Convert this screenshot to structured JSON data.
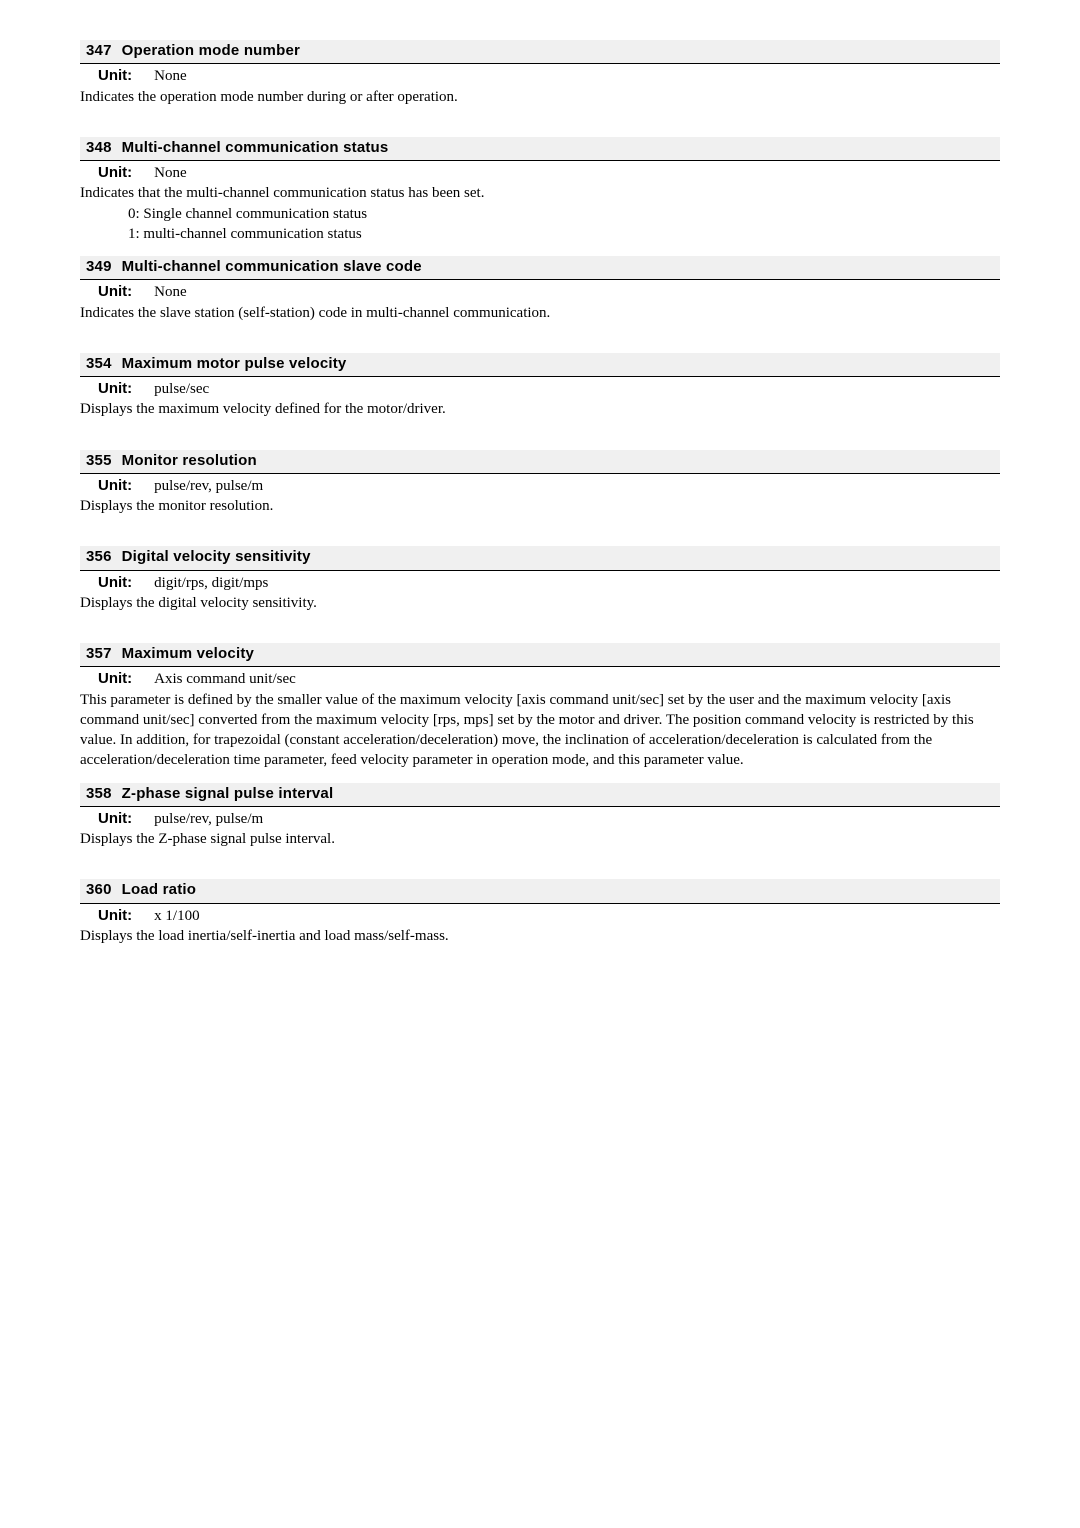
{
  "sections": [
    {
      "num": "347",
      "title": "Operation mode number",
      "unit": "None",
      "desc": [
        "Indicates the operation mode number during or after operation."
      ],
      "bullets": [],
      "spacing": "large"
    },
    {
      "num": "348",
      "title": "Multi-channel communication status",
      "unit": "None",
      "desc": [
        "Indicates that the multi-channel communication status has been set."
      ],
      "bullets": [
        "0:  Single channel communication status",
        "1:  multi-channel communication status"
      ],
      "spacing": "tight"
    },
    {
      "num": "349",
      "title": "Multi-channel communication slave code",
      "unit": "None",
      "desc": [
        "Indicates the slave station (self-station) code in multi-channel communication."
      ],
      "bullets": [],
      "spacing": "large"
    },
    {
      "num": "354",
      "title": "Maximum motor pulse velocity",
      "unit": "pulse/sec",
      "desc": [
        "Displays the maximum velocity defined for the motor/driver."
      ],
      "bullets": [],
      "spacing": "large"
    },
    {
      "num": "355",
      "title": "Monitor resolution",
      "unit": "pulse/rev, pulse/m",
      "desc": [
        "Displays the monitor resolution."
      ],
      "bullets": [],
      "spacing": "large"
    },
    {
      "num": "356",
      "title": "Digital velocity sensitivity",
      "unit": "digit/rps, digit/mps",
      "desc": [
        "Displays the digital velocity sensitivity."
      ],
      "bullets": [],
      "spacing": "large"
    },
    {
      "num": "357",
      "title": "Maximum velocity",
      "unit": "Axis command unit/sec",
      "desc": [
        "This parameter is defined by the smaller value of the maximum velocity [axis command unit/sec] set by the user and the maximum velocity [axis command unit/sec] converted from the maximum velocity [rps, mps] set by the motor and driver. The position command velocity is restricted by this value. In addition, for trapezoidal (constant acceleration/deceleration) move, the inclination of acceleration/deceleration is calculated from the acceleration/deceleration time parameter, feed velocity parameter in operation mode, and this parameter value."
      ],
      "bullets": [],
      "spacing": "tight"
    },
    {
      "num": "358",
      "title": "Z-phase signal pulse interval",
      "unit": "pulse/rev, pulse/m",
      "desc": [
        "Displays the Z-phase signal pulse interval."
      ],
      "bullets": [],
      "spacing": "large"
    },
    {
      "num": "360",
      "title": "Load ratio",
      "unit": "x 1/100",
      "desc": [
        "Displays the load inertia/self-inertia and load mass/self-mass."
      ],
      "bullets": [],
      "spacing": "large"
    }
  ]
}
